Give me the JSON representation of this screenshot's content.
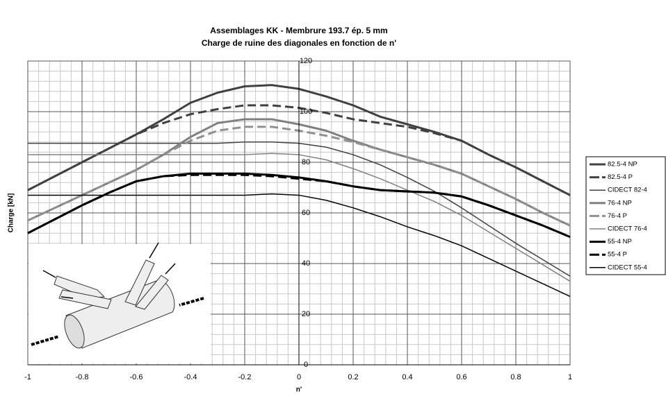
{
  "chart_data": {
    "type": "line",
    "title": "Assemblages KK - Membrure 193.7 ép. 5 mm",
    "subtitle": "Charge de ruine des diagonales en fonction de n'",
    "x_label": "n'",
    "y_label": "Charge [kN]",
    "x": [
      -1,
      -0.9,
      -0.8,
      -0.7,
      -0.6,
      -0.5,
      -0.4,
      -0.3,
      -0.2,
      -0.1,
      0,
      0.1,
      0.2,
      0.3,
      0.4,
      0.5,
      0.6,
      0.7,
      0.8,
      0.9,
      1
    ],
    "xlim": [
      -1,
      1
    ],
    "xticks": [
      -1,
      -0.8,
      -0.6,
      -0.4,
      -0.2,
      0,
      0.2,
      0.4,
      0.6,
      0.8,
      1
    ],
    "ylim": [
      0,
      120
    ],
    "yticks": [
      0,
      20,
      40,
      60,
      80,
      100,
      120
    ],
    "grid": true,
    "minor_grid": true,
    "legend": "right",
    "series": [
      {
        "name": "82.5-4 NP",
        "color": "#404040",
        "linewidth": 3,
        "dashed": false,
        "values": [
          69,
          74.5,
          80,
          85.5,
          91,
          97,
          103.5,
          107.5,
          110,
          110.5,
          109,
          106,
          102.5,
          98,
          95,
          92,
          88.5,
          83,
          78,
          72.5,
          67
        ]
      },
      {
        "name": "82.5-4 P",
        "color": "#404040",
        "linewidth": 3,
        "dashed": true,
        "values": [
          69,
          74.5,
          80,
          85.5,
          91,
          95.5,
          99,
          101,
          102.5,
          102.5,
          101.5,
          99.5,
          97,
          95.5,
          94,
          91.5,
          88.5,
          83,
          78,
          72.5,
          67
        ]
      },
      {
        "name": "CIDECT 82-4",
        "color": "#404040",
        "linewidth": 1.5,
        "dashed": false,
        "values": [
          87.5,
          87.5,
          87.5,
          87.5,
          87.5,
          87.5,
          87.5,
          87.5,
          88,
          88,
          87.5,
          86,
          83,
          79,
          74,
          68.5,
          62,
          55,
          48,
          41.5,
          35
        ]
      },
      {
        "name": "76-4 NP",
        "color": "#808080",
        "linewidth": 3,
        "dashed": false,
        "values": [
          57,
          62,
          67,
          72,
          77,
          83,
          90,
          95.5,
          97,
          97,
          95,
          92.5,
          88.5,
          85,
          82,
          79,
          75.5,
          70.5,
          65.5,
          60,
          55
        ]
      },
      {
        "name": "76-4 P",
        "color": "#909090",
        "linewidth": 3,
        "dashed": true,
        "values": [
          57,
          62,
          67,
          72,
          77,
          83,
          88.5,
          92.5,
          94,
          94,
          92.5,
          90.5,
          88,
          85,
          82,
          79,
          75.5,
          70.5,
          65.5,
          60,
          55
        ]
      },
      {
        "name": "CIDECT 76-4",
        "color": "#808080",
        "linewidth": 1.5,
        "dashed": false,
        "values": [
          83,
          83,
          83,
          83,
          83,
          83,
          83,
          83,
          83,
          83.5,
          83,
          81,
          77.5,
          73.5,
          69,
          64.5,
          59,
          52.5,
          46,
          39.5,
          33
        ]
      },
      {
        "name": "55-4 NP",
        "color": "#000000",
        "linewidth": 3,
        "dashed": false,
        "values": [
          52,
          57.5,
          63,
          68,
          72.5,
          74.5,
          75.5,
          75.5,
          75.5,
          75,
          74,
          72.5,
          70.5,
          69,
          68.5,
          68,
          66.5,
          63,
          59,
          55,
          50.5
        ]
      },
      {
        "name": "55-4 P",
        "color": "#000000",
        "linewidth": 3,
        "dashed": true,
        "values": [
          52,
          57.5,
          63,
          68,
          72.5,
          74.5,
          75,
          75,
          75,
          74.5,
          73.5,
          72.5,
          70.5,
          69,
          68.5,
          68,
          66.5,
          63,
          59,
          55,
          50.5
        ]
      },
      {
        "name": "CIDECT 55-4",
        "color": "#000000",
        "linewidth": 1.5,
        "dashed": false,
        "values": [
          67,
          67,
          67,
          67,
          67,
          67,
          67,
          67,
          67,
          67.5,
          67,
          65,
          62,
          58.5,
          54.5,
          51,
          47,
          42,
          37,
          32,
          27
        ]
      }
    ]
  }
}
